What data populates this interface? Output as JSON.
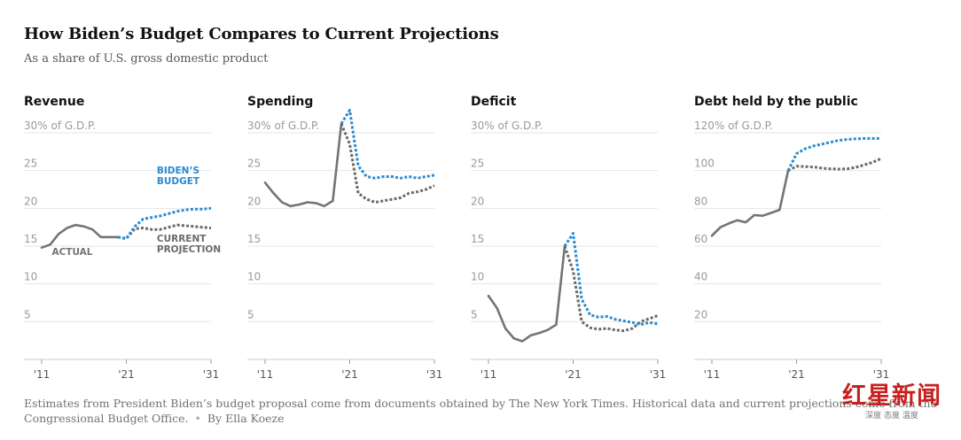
{
  "title": "How Biden’s Budget Compares to Current Projections",
  "subtitle": "As a share of U.S. gross domestic product",
  "footnote": {
    "text": "Estimates from President Biden’s budget proposal come from documents obtained by The New York Times. Historical data and current projections come from the Congressional Budget Office.",
    "separator": "•",
    "byline": "By Ella Koeze"
  },
  "watermark": {
    "logo": "红星新闻",
    "tagline": "深度 态度 温度"
  },
  "colors": {
    "actual": "#747474",
    "biden": "#2a8ad0",
    "current": "#6a6a6a",
    "grid": "#e6e6e6",
    "axis": "#cccccc",
    "tick_text": "#9a9a9a"
  },
  "chart_data": [
    {
      "type": "line",
      "title": "Revenue",
      "x_ticks": [
        "'11",
        "'21",
        "'31"
      ],
      "xlim": [
        2011,
        2031
      ],
      "ylim": [
        0,
        30
      ],
      "y_ticks": [
        5,
        10,
        15,
        20,
        25,
        30
      ],
      "y_top_label": "30% of G.D.P.",
      "annotations": [
        {
          "text": [
            "ACTUAL"
          ],
          "series": "Actual",
          "x": 2012.2,
          "y": 13.8
        },
        {
          "text": [
            "BIDEN’S",
            "BUDGET"
          ],
          "series": "Biden’s budget",
          "x": 2024.6,
          "y": 24.6
        },
        {
          "text": [
            "CURRENT",
            "PROJECTION"
          ],
          "series": "Current projection",
          "x": 2024.6,
          "y": 15.6
        }
      ],
      "series": [
        {
          "name": "Actual",
          "style": "actual",
          "x": [
            2011,
            2012,
            2013,
            2014,
            2015,
            2016,
            2017,
            2018,
            2019,
            2020
          ],
          "values": [
            14.8,
            15.2,
            16.6,
            17.4,
            17.8,
            17.6,
            17.2,
            16.2,
            16.2,
            16.2
          ]
        },
        {
          "name": "Biden’s budget",
          "style": "biden",
          "x": [
            2020,
            2021,
            2022,
            2023,
            2024,
            2025,
            2026,
            2027,
            2028,
            2029,
            2030,
            2031
          ],
          "values": [
            16.2,
            16.0,
            17.6,
            18.6,
            18.8,
            19.0,
            19.3,
            19.6,
            19.8,
            19.9,
            19.9,
            20.0
          ]
        },
        {
          "name": "Current projection",
          "style": "current",
          "x": [
            2020,
            2021,
            2022,
            2023,
            2024,
            2025,
            2026,
            2027,
            2028,
            2029,
            2030,
            2031
          ],
          "values": [
            16.2,
            16.0,
            17.3,
            17.4,
            17.2,
            17.2,
            17.5,
            17.8,
            17.7,
            17.6,
            17.5,
            17.4
          ]
        }
      ]
    },
    {
      "type": "line",
      "title": "Spending",
      "x_ticks": [
        "'11",
        "'21",
        "'31"
      ],
      "xlim": [
        2011,
        2031
      ],
      "ylim": [
        0,
        30
      ],
      "y_ticks": [
        5,
        10,
        15,
        20,
        25,
        30
      ],
      "y_top_label": "30% of G.D.P.",
      "series": [
        {
          "name": "Actual",
          "style": "actual",
          "x": [
            2011,
            2012,
            2013,
            2014,
            2015,
            2016,
            2017,
            2018,
            2019,
            2020
          ],
          "values": [
            23.4,
            22.0,
            20.8,
            20.3,
            20.5,
            20.8,
            20.7,
            20.3,
            21.0,
            31.2
          ]
        },
        {
          "name": "Biden’s budget",
          "style": "biden",
          "x": [
            2020,
            2021,
            2022,
            2023,
            2024,
            2025,
            2026,
            2027,
            2028,
            2029,
            2030,
            2031
          ],
          "values": [
            31.2,
            33.0,
            25.6,
            24.2,
            24.0,
            24.2,
            24.2,
            24.0,
            24.2,
            24.0,
            24.2,
            24.4
          ]
        },
        {
          "name": "Current projection",
          "style": "current",
          "x": [
            2020,
            2021,
            2022,
            2023,
            2024,
            2025,
            2026,
            2027,
            2028,
            2029,
            2030,
            2031
          ],
          "values": [
            31.2,
            28.5,
            22.0,
            21.2,
            20.8,
            21.0,
            21.2,
            21.4,
            22.0,
            22.2,
            22.5,
            23.0
          ]
        }
      ]
    },
    {
      "type": "line",
      "title": "Deficit",
      "x_ticks": [
        "'11",
        "'21",
        "'31"
      ],
      "xlim": [
        2011,
        2031
      ],
      "ylim": [
        0,
        30
      ],
      "y_ticks": [
        5,
        10,
        15,
        20,
        25,
        30
      ],
      "y_top_label": "30% of G.D.P.",
      "series": [
        {
          "name": "Actual",
          "style": "actual",
          "x": [
            2011,
            2012,
            2013,
            2014,
            2015,
            2016,
            2017,
            2018,
            2019,
            2020
          ],
          "values": [
            8.4,
            6.8,
            4.1,
            2.8,
            2.4,
            3.2,
            3.5,
            3.9,
            4.6,
            15.0
          ]
        },
        {
          "name": "Biden’s budget",
          "style": "biden",
          "x": [
            2020,
            2021,
            2022,
            2023,
            2024,
            2025,
            2026,
            2027,
            2028,
            2029,
            2030,
            2031
          ],
          "values": [
            15.0,
            16.7,
            8.0,
            5.9,
            5.6,
            5.7,
            5.3,
            5.1,
            4.9,
            4.6,
            4.9,
            4.7
          ]
        },
        {
          "name": "Current projection",
          "style": "current",
          "x": [
            2020,
            2021,
            2022,
            2023,
            2024,
            2025,
            2026,
            2027,
            2028,
            2029,
            2030,
            2031
          ],
          "values": [
            15.0,
            11.7,
            5.0,
            4.2,
            4.0,
            4.1,
            3.9,
            3.8,
            4.1,
            5.0,
            5.4,
            5.8
          ]
        }
      ]
    },
    {
      "type": "line",
      "title": "Debt held by the public",
      "x_ticks": [
        "'11",
        "'21",
        "'31"
      ],
      "xlim": [
        2011,
        2031
      ],
      "ylim": [
        0,
        120
      ],
      "y_ticks": [
        20,
        40,
        60,
        80,
        100,
        120
      ],
      "y_top_label": "120% of G.D.P.",
      "series": [
        {
          "name": "Actual",
          "style": "actual",
          "x": [
            2011,
            2012,
            2013,
            2014,
            2015,
            2016,
            2017,
            2018,
            2019,
            2020
          ],
          "values": [
            65.5,
            70.0,
            72.0,
            73.7,
            72.6,
            76.4,
            76.1,
            77.6,
            79.2,
            100.0
          ]
        },
        {
          "name": "Biden’s budget",
          "style": "biden",
          "x": [
            2020,
            2021,
            2022,
            2023,
            2024,
            2025,
            2026,
            2027,
            2028,
            2029,
            2030,
            2031
          ],
          "values": [
            100.0,
            109.0,
            111.5,
            113.0,
            114.0,
            115.0,
            116.0,
            116.5,
            116.8,
            117.0,
            117.0,
            117.0
          ]
        },
        {
          "name": "Current projection",
          "style": "current",
          "x": [
            2020,
            2021,
            2022,
            2023,
            2024,
            2025,
            2026,
            2027,
            2028,
            2029,
            2030,
            2031
          ],
          "values": [
            100.0,
            102.3,
            102.1,
            101.9,
            101.3,
            100.9,
            100.8,
            100.9,
            101.7,
            103.0,
            104.4,
            106.4
          ]
        }
      ]
    }
  ]
}
